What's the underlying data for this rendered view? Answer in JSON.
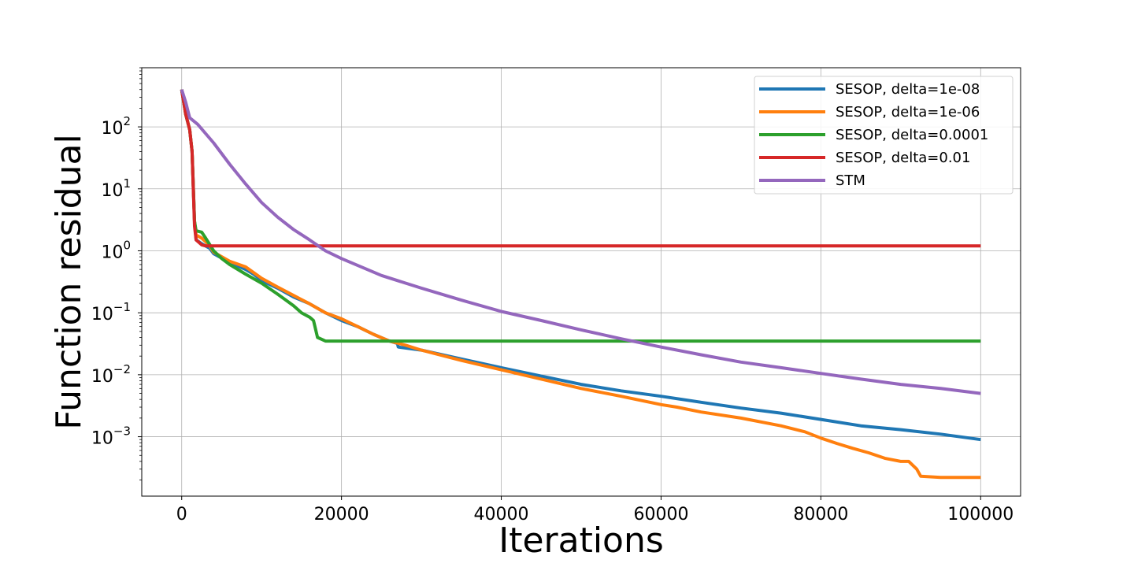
{
  "chart_data": {
    "type": "line",
    "title": "",
    "xlabel": "Iterations",
    "ylabel": "Function residual",
    "xlim": [
      -5000,
      105000
    ],
    "ylim": [
      0.00011,
      900
    ],
    "yscale": "log",
    "grid": true,
    "legend_position": "top-right",
    "x_ticks": [
      {
        "value": 0,
        "label": "0"
      },
      {
        "value": 20000,
        "label": "20000"
      },
      {
        "value": 40000,
        "label": "40000"
      },
      {
        "value": 60000,
        "label": "60000"
      },
      {
        "value": 80000,
        "label": "80000"
      },
      {
        "value": 100000,
        "label": "100000"
      }
    ],
    "y_ticks": [
      {
        "value": 0.001,
        "base": "10",
        "exp": "−3"
      },
      {
        "value": 0.01,
        "base": "10",
        "exp": "−2"
      },
      {
        "value": 0.1,
        "base": "10",
        "exp": "−1"
      },
      {
        "value": 1,
        "base": "10",
        "exp": "0"
      },
      {
        "value": 10,
        "base": "10",
        "exp": "1"
      },
      {
        "value": 100,
        "base": "10",
        "exp": "2"
      }
    ],
    "series": [
      {
        "name": "SESOP, delta=1e-08",
        "color": "#1f77b4",
        "points": [
          [
            0,
            400
          ],
          [
            500,
            160
          ],
          [
            1000,
            90
          ],
          [
            1300,
            40
          ],
          [
            1600,
            3
          ],
          [
            1800,
            1.5
          ],
          [
            2500,
            1.3
          ],
          [
            3500,
            1.1
          ],
          [
            4000,
            0.9
          ],
          [
            6000,
            0.65
          ],
          [
            8000,
            0.5
          ],
          [
            9000,
            0.42
          ],
          [
            10000,
            0.33
          ],
          [
            12000,
            0.25
          ],
          [
            14000,
            0.18
          ],
          [
            16000,
            0.14
          ],
          [
            18000,
            0.1
          ],
          [
            20000,
            0.075
          ],
          [
            22000,
            0.06
          ],
          [
            24000,
            0.045
          ],
          [
            26000,
            0.035
          ],
          [
            27000,
            0.032
          ],
          [
            27100,
            0.028
          ],
          [
            30000,
            0.025
          ],
          [
            35000,
            0.018
          ],
          [
            40000,
            0.013
          ],
          [
            45000,
            0.0095
          ],
          [
            50000,
            0.007
          ],
          [
            55000,
            0.0055
          ],
          [
            60000,
            0.0045
          ],
          [
            65000,
            0.0036
          ],
          [
            70000,
            0.0029
          ],
          [
            75000,
            0.0024
          ],
          [
            80000,
            0.0019
          ],
          [
            85000,
            0.0015
          ],
          [
            90000,
            0.0013
          ],
          [
            95000,
            0.0011
          ],
          [
            100000,
            0.0009
          ]
        ]
      },
      {
        "name": "SESOP, delta=1e-06",
        "color": "#ff7f0e",
        "points": [
          [
            0,
            400
          ],
          [
            500,
            160
          ],
          [
            1000,
            90
          ],
          [
            1300,
            40
          ],
          [
            1600,
            3
          ],
          [
            1800,
            1.8
          ],
          [
            2500,
            1.6
          ],
          [
            3000,
            1.4
          ],
          [
            3500,
            1.2
          ],
          [
            4000,
            0.95
          ],
          [
            6000,
            0.68
          ],
          [
            8000,
            0.55
          ],
          [
            10000,
            0.36
          ],
          [
            12000,
            0.26
          ],
          [
            14000,
            0.19
          ],
          [
            16000,
            0.14
          ],
          [
            18000,
            0.1
          ],
          [
            20000,
            0.08
          ],
          [
            22000,
            0.06
          ],
          [
            24000,
            0.045
          ],
          [
            26000,
            0.035
          ],
          [
            28000,
            0.03
          ],
          [
            30000,
            0.025
          ],
          [
            35000,
            0.017
          ],
          [
            40000,
            0.012
          ],
          [
            45000,
            0.0085
          ],
          [
            50000,
            0.006
          ],
          [
            55000,
            0.0045
          ],
          [
            60000,
            0.0033
          ],
          [
            62000,
            0.003
          ],
          [
            65000,
            0.0025
          ],
          [
            70000,
            0.002
          ],
          [
            75000,
            0.0015
          ],
          [
            78000,
            0.0012
          ],
          [
            80000,
            0.00095
          ],
          [
            82000,
            0.00078
          ],
          [
            84000,
            0.00065
          ],
          [
            86000,
            0.00055
          ],
          [
            88000,
            0.00045
          ],
          [
            90000,
            0.0004
          ],
          [
            91000,
            0.0004
          ],
          [
            92000,
            0.0003
          ],
          [
            92500,
            0.00023
          ],
          [
            95000,
            0.00022
          ],
          [
            100000,
            0.00022
          ]
        ]
      },
      {
        "name": "SESOP, delta=0.0001",
        "color": "#2ca02c",
        "points": [
          [
            0,
            400
          ],
          [
            500,
            160
          ],
          [
            1000,
            90
          ],
          [
            1300,
            40
          ],
          [
            1600,
            3
          ],
          [
            1800,
            2.1
          ],
          [
            2500,
            2.0
          ],
          [
            3000,
            1.6
          ],
          [
            4000,
            1.0
          ],
          [
            5000,
            0.75
          ],
          [
            6000,
            0.6
          ],
          [
            8000,
            0.42
          ],
          [
            10000,
            0.3
          ],
          [
            12000,
            0.2
          ],
          [
            14000,
            0.13
          ],
          [
            15000,
            0.1
          ],
          [
            16000,
            0.085
          ],
          [
            16500,
            0.075
          ],
          [
            17000,
            0.04
          ],
          [
            18000,
            0.035
          ],
          [
            20000,
            0.035
          ],
          [
            30000,
            0.035
          ],
          [
            40000,
            0.035
          ],
          [
            50000,
            0.035
          ],
          [
            60000,
            0.035
          ],
          [
            70000,
            0.035
          ],
          [
            80000,
            0.035
          ],
          [
            90000,
            0.035
          ],
          [
            100000,
            0.035
          ]
        ]
      },
      {
        "name": "SESOP, delta=0.01",
        "color": "#d62728",
        "points": [
          [
            0,
            400
          ],
          [
            500,
            160
          ],
          [
            1000,
            90
          ],
          [
            1300,
            40
          ],
          [
            1600,
            2.5
          ],
          [
            1800,
            1.5
          ],
          [
            2500,
            1.25
          ],
          [
            3000,
            1.2
          ],
          [
            10000,
            1.2
          ],
          [
            20000,
            1.2
          ],
          [
            40000,
            1.2
          ],
          [
            60000,
            1.2
          ],
          [
            80000,
            1.2
          ],
          [
            100000,
            1.2
          ]
        ]
      },
      {
        "name": "STM",
        "color": "#9467bd",
        "points": [
          [
            0,
            400
          ],
          [
            500,
            250
          ],
          [
            1000,
            140
          ],
          [
            2000,
            110
          ],
          [
            4000,
            55
          ],
          [
            6000,
            25
          ],
          [
            8000,
            12
          ],
          [
            10000,
            6
          ],
          [
            12000,
            3.5
          ],
          [
            14000,
            2.2
          ],
          [
            16000,
            1.5
          ],
          [
            18000,
            1.0
          ],
          [
            20000,
            0.75
          ],
          [
            25000,
            0.4
          ],
          [
            30000,
            0.25
          ],
          [
            35000,
            0.16
          ],
          [
            40000,
            0.105
          ],
          [
            45000,
            0.075
          ],
          [
            50000,
            0.053
          ],
          [
            55000,
            0.038
          ],
          [
            60000,
            0.028
          ],
          [
            65000,
            0.021
          ],
          [
            70000,
            0.016
          ],
          [
            75000,
            0.013
          ],
          [
            80000,
            0.0105
          ],
          [
            85000,
            0.0085
          ],
          [
            90000,
            0.007
          ],
          [
            95000,
            0.006
          ],
          [
            100000,
            0.005
          ]
        ]
      }
    ]
  }
}
